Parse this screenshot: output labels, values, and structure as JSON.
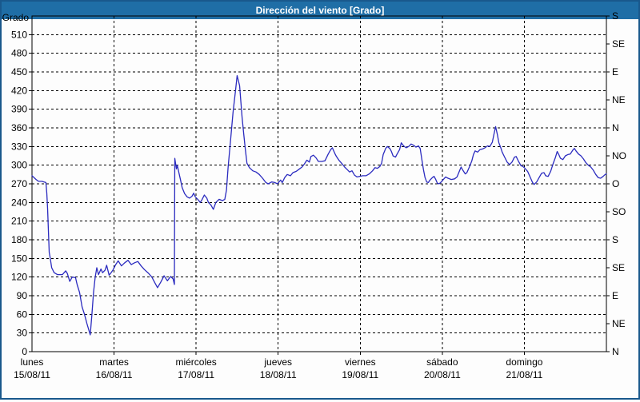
{
  "window": {
    "title": "Dirección del viento [Grado]"
  },
  "colors": {
    "titlebar": "#1f6ea6",
    "window_border": "#19588c",
    "background": "#fdfdfd",
    "grid": "#000000",
    "axis": "#000000",
    "line": "#2b2bbf"
  },
  "chart_data": {
    "type": "line",
    "title": "Dirección del viento [Grado]",
    "grid": true,
    "legend": "none",
    "y_axis": {
      "label": "Grado",
      "min": 0,
      "max": 540,
      "tick_step": 30,
      "tick_labels": [
        0,
        30,
        60,
        90,
        120,
        150,
        180,
        210,
        240,
        270,
        300,
        330,
        360,
        390,
        420,
        450,
        480,
        510
      ]
    },
    "y_axis_right": {
      "unit": "compass",
      "ticks": [
        {
          "value": 540,
          "label": "S"
        },
        {
          "value": 495,
          "label": "SE"
        },
        {
          "value": 450,
          "label": "E"
        },
        {
          "value": 405,
          "label": "NE"
        },
        {
          "value": 360,
          "label": "N"
        },
        {
          "value": 315,
          "label": "NO"
        },
        {
          "value": 270,
          "label": "O"
        },
        {
          "value": 225,
          "label": "SO"
        },
        {
          "value": 180,
          "label": "S"
        },
        {
          "value": 135,
          "label": "SE"
        },
        {
          "value": 90,
          "label": "E"
        },
        {
          "value": 45,
          "label": "NE"
        },
        {
          "value": 0,
          "label": "N"
        }
      ]
    },
    "x_axis": {
      "min": 0,
      "max": 7,
      "days": [
        {
          "label": "lunes",
          "date": "15/08/11"
        },
        {
          "label": "martes",
          "date": "16/08/11"
        },
        {
          "label": "miércoles",
          "date": "17/08/11"
        },
        {
          "label": "jueves",
          "date": "18/08/11"
        },
        {
          "label": "viernes",
          "date": "19/08/11"
        },
        {
          "label": "sábado",
          "date": "20/08/11"
        },
        {
          "label": "domingo",
          "date": "21/08/11"
        }
      ]
    },
    "series": [
      {
        "name": "Dirección del viento",
        "unit": "Grado",
        "points": [
          [
            0.0,
            283
          ],
          [
            0.05,
            277
          ],
          [
            0.08,
            274
          ],
          [
            0.12,
            274
          ],
          [
            0.17,
            272
          ],
          [
            0.18,
            255
          ],
          [
            0.19,
            230
          ],
          [
            0.2,
            195
          ],
          [
            0.21,
            160
          ],
          [
            0.22,
            152
          ],
          [
            0.24,
            135
          ],
          [
            0.27,
            127
          ],
          [
            0.31,
            124
          ],
          [
            0.37,
            124
          ],
          [
            0.41,
            130
          ],
          [
            0.43,
            126
          ],
          [
            0.46,
            113
          ],
          [
            0.49,
            120
          ],
          [
            0.53,
            119
          ],
          [
            0.55,
            108
          ],
          [
            0.58,
            95
          ],
          [
            0.61,
            72
          ],
          [
            0.64,
            60
          ],
          [
            0.67,
            45
          ],
          [
            0.71,
            27
          ],
          [
            0.73,
            60
          ],
          [
            0.75,
            95
          ],
          [
            0.77,
            120
          ],
          [
            0.79,
            135
          ],
          [
            0.81,
            124
          ],
          [
            0.84,
            133
          ],
          [
            0.86,
            127
          ],
          [
            0.89,
            131
          ],
          [
            0.91,
            139
          ],
          [
            0.94,
            123
          ],
          [
            0.97,
            128
          ],
          [
            0.99,
            132
          ],
          [
            1.02,
            140
          ],
          [
            1.05,
            146
          ],
          [
            1.09,
            138
          ],
          [
            1.13,
            143
          ],
          [
            1.17,
            147
          ],
          [
            1.21,
            140
          ],
          [
            1.25,
            143
          ],
          [
            1.29,
            145
          ],
          [
            1.33,
            138
          ],
          [
            1.37,
            132
          ],
          [
            1.42,
            126
          ],
          [
            1.46,
            120
          ],
          [
            1.5,
            110
          ],
          [
            1.53,
            103
          ],
          [
            1.57,
            112
          ],
          [
            1.61,
            122
          ],
          [
            1.65,
            114
          ],
          [
            1.69,
            121
          ],
          [
            1.72,
            117
          ],
          [
            1.735,
            108
          ],
          [
            1.74,
            311
          ],
          [
            1.76,
            294
          ],
          [
            1.77,
            300
          ],
          [
            1.79,
            288
          ],
          [
            1.81,
            276
          ],
          [
            1.83,
            264
          ],
          [
            1.86,
            254
          ],
          [
            1.89,
            249
          ],
          [
            1.92,
            247
          ],
          [
            1.95,
            250
          ],
          [
            1.97,
            255
          ],
          [
            1.99,
            249
          ],
          [
            2.02,
            245
          ],
          [
            2.05,
            240
          ],
          [
            2.07,
            244
          ],
          [
            2.1,
            252
          ],
          [
            2.13,
            247
          ],
          [
            2.15,
            240
          ],
          [
            2.18,
            236
          ],
          [
            2.21,
            229
          ],
          [
            2.24,
            240
          ],
          [
            2.28,
            245
          ],
          [
            2.32,
            243
          ],
          [
            2.35,
            245
          ],
          [
            2.37,
            260
          ],
          [
            2.39,
            296
          ],
          [
            2.42,
            340
          ],
          [
            2.45,
            385
          ],
          [
            2.48,
            420
          ],
          [
            2.5,
            444
          ],
          [
            2.53,
            428
          ],
          [
            2.56,
            377
          ],
          [
            2.58,
            351
          ],
          [
            2.6,
            325
          ],
          [
            2.62,
            303
          ],
          [
            2.65,
            296
          ],
          [
            2.69,
            291
          ],
          [
            2.73,
            289
          ],
          [
            2.77,
            285
          ],
          [
            2.81,
            279
          ],
          [
            2.85,
            272
          ],
          [
            2.88,
            270
          ],
          [
            2.92,
            273
          ],
          [
            2.96,
            272
          ],
          [
            2.99,
            270
          ],
          [
            3.03,
            276
          ],
          [
            3.05,
            272
          ],
          [
            3.08,
            280
          ],
          [
            3.11,
            285
          ],
          [
            3.15,
            283
          ],
          [
            3.18,
            288
          ],
          [
            3.22,
            290
          ],
          [
            3.26,
            294
          ],
          [
            3.29,
            297
          ],
          [
            3.32,
            302
          ],
          [
            3.35,
            308
          ],
          [
            3.38,
            305
          ],
          [
            3.4,
            314
          ],
          [
            3.43,
            316
          ],
          [
            3.46,
            312
          ],
          [
            3.49,
            306
          ],
          [
            3.53,
            306
          ],
          [
            3.57,
            307
          ],
          [
            3.61,
            318
          ],
          [
            3.64,
            325
          ],
          [
            3.66,
            328
          ],
          [
            3.69,
            319
          ],
          [
            3.71,
            314
          ],
          [
            3.74,
            308
          ],
          [
            3.78,
            302
          ],
          [
            3.81,
            297
          ],
          [
            3.84,
            293
          ],
          [
            3.87,
            289
          ],
          [
            3.9,
            291
          ],
          [
            3.93,
            284
          ],
          [
            3.96,
            281
          ],
          [
            3.99,
            282
          ],
          [
            4.03,
            283
          ],
          [
            4.07,
            283
          ],
          [
            4.11,
            286
          ],
          [
            4.15,
            291
          ],
          [
            4.18,
            296
          ],
          [
            4.21,
            295
          ],
          [
            4.24,
            298
          ],
          [
            4.26,
            303
          ],
          [
            4.28,
            317
          ],
          [
            4.31,
            327
          ],
          [
            4.33,
            330
          ],
          [
            4.36,
            327
          ],
          [
            4.38,
            322
          ],
          [
            4.4,
            315
          ],
          [
            4.43,
            313
          ],
          [
            4.45,
            318
          ],
          [
            4.48,
            325
          ],
          [
            4.5,
            336
          ],
          [
            4.53,
            331
          ],
          [
            4.56,
            328
          ],
          [
            4.59,
            330
          ],
          [
            4.62,
            334
          ],
          [
            4.65,
            332
          ],
          [
            4.68,
            329
          ],
          [
            4.71,
            331
          ],
          [
            4.73,
            327
          ],
          [
            4.75,
            310
          ],
          [
            4.77,
            293
          ],
          [
            4.79,
            280
          ],
          [
            4.81,
            273
          ],
          [
            4.83,
            272
          ],
          [
            4.85,
            276
          ],
          [
            4.88,
            280
          ],
          [
            4.9,
            282
          ],
          [
            4.92,
            277
          ],
          [
            4.94,
            271
          ],
          [
            4.96,
            270
          ],
          [
            4.98,
            272
          ],
          [
            5.0,
            275
          ],
          [
            5.04,
            281
          ],
          [
            5.07,
            279
          ],
          [
            5.11,
            277
          ],
          [
            5.15,
            278
          ],
          [
            5.18,
            281
          ],
          [
            5.21,
            291
          ],
          [
            5.23,
            297
          ],
          [
            5.25,
            292
          ],
          [
            5.28,
            286
          ],
          [
            5.3,
            288
          ],
          [
            5.33,
            297
          ],
          [
            5.36,
            307
          ],
          [
            5.38,
            317
          ],
          [
            5.4,
            323
          ],
          [
            5.43,
            321
          ],
          [
            5.46,
            325
          ],
          [
            5.49,
            326
          ],
          [
            5.52,
            328
          ],
          [
            5.55,
            331
          ],
          [
            5.58,
            330
          ],
          [
            5.61,
            337
          ],
          [
            5.63,
            350
          ],
          [
            5.65,
            362
          ],
          [
            5.67,
            350
          ],
          [
            5.69,
            336
          ],
          [
            5.71,
            329
          ],
          [
            5.73,
            321
          ],
          [
            5.76,
            313
          ],
          [
            5.79,
            305
          ],
          [
            5.82,
            301
          ],
          [
            5.85,
            305
          ],
          [
            5.88,
            313
          ],
          [
            5.9,
            314
          ],
          [
            5.93,
            306
          ],
          [
            5.96,
            299
          ],
          [
            5.98,
            298
          ],
          [
            6.0,
            296
          ],
          [
            6.04,
            290
          ],
          [
            6.07,
            281
          ],
          [
            6.1,
            272
          ],
          [
            6.12,
            269
          ],
          [
            6.15,
            273
          ],
          [
            6.18,
            280
          ],
          [
            6.21,
            287
          ],
          [
            6.24,
            288
          ],
          [
            6.26,
            283
          ],
          [
            6.29,
            282
          ],
          [
            6.32,
            290
          ],
          [
            6.35,
            302
          ],
          [
            6.38,
            313
          ],
          [
            6.4,
            322
          ],
          [
            6.42,
            317
          ],
          [
            6.44,
            311
          ],
          [
            6.47,
            309
          ],
          [
            6.5,
            315
          ],
          [
            6.53,
            317
          ],
          [
            6.56,
            318
          ],
          [
            6.59,
            324
          ],
          [
            6.61,
            327
          ],
          [
            6.63,
            323
          ],
          [
            6.66,
            318
          ],
          [
            6.69,
            315
          ],
          [
            6.72,
            310
          ],
          [
            6.75,
            304
          ],
          [
            6.78,
            300
          ],
          [
            6.81,
            297
          ],
          [
            6.84,
            292
          ],
          [
            6.87,
            285
          ],
          [
            6.9,
            280
          ],
          [
            6.93,
            279
          ],
          [
            6.96,
            282
          ],
          [
            6.985,
            285
          ],
          [
            7.0,
            286
          ]
        ]
      }
    ]
  }
}
